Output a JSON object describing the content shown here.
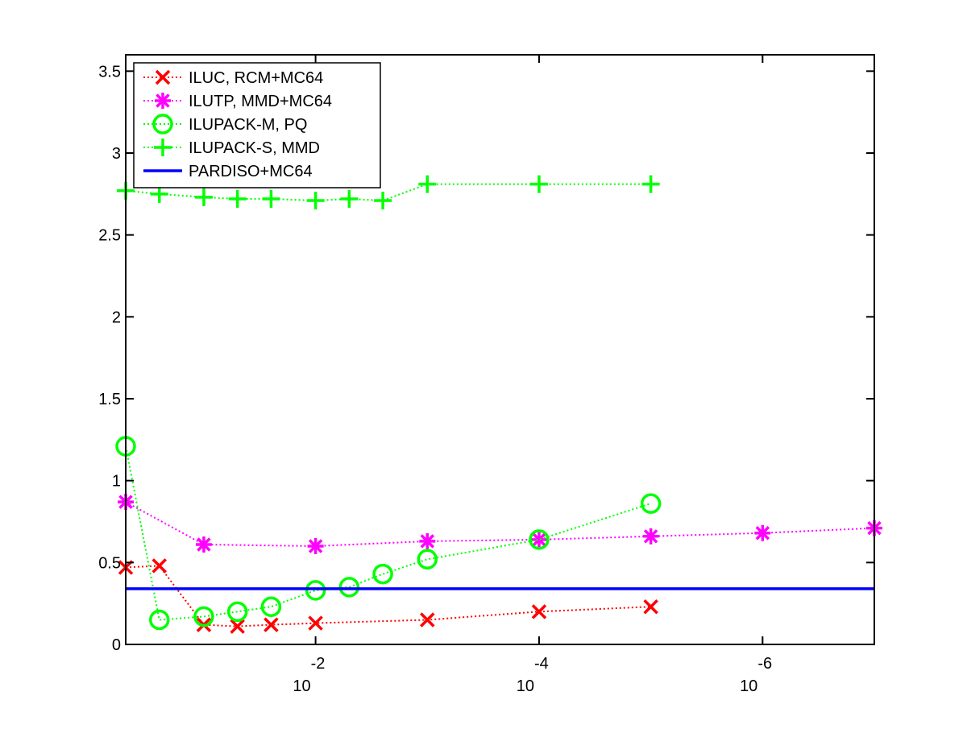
{
  "chart_data": {
    "type": "line",
    "title": "",
    "xlabel": "",
    "ylabel": "",
    "x_scale": "log-reversed",
    "xlim": [
      0.5,
      1e-07
    ],
    "ylim": [
      0,
      3.6
    ],
    "grid": false,
    "legend_position": "top-left",
    "yticks": [
      {
        "value": 0,
        "label": "0"
      },
      {
        "value": 0.5,
        "label": "0.5"
      },
      {
        "value": 1,
        "label": "1"
      },
      {
        "value": 1.5,
        "label": "1.5"
      },
      {
        "value": 2,
        "label": "2"
      },
      {
        "value": 2.5,
        "label": "2.5"
      },
      {
        "value": 3,
        "label": "3"
      },
      {
        "value": 3.5,
        "label": "3.5"
      }
    ],
    "xticks": [
      {
        "value": 0.01,
        "base": "10",
        "exponent": "-2"
      },
      {
        "value": 0.0001,
        "base": "10",
        "exponent": "-4"
      },
      {
        "value": 1e-06,
        "base": "10",
        "exponent": "-6"
      }
    ],
    "series": [
      {
        "name": "ILUC, RCM+MC64",
        "color": "#ff0000",
        "marker": "x",
        "line_style": "dotted",
        "x": [
          0.5,
          0.25,
          0.1,
          0.05,
          0.025,
          0.01,
          0.001,
          0.0001,
          1e-05
        ],
        "y": [
          0.47,
          0.48,
          0.12,
          0.11,
          0.12,
          0.13,
          0.15,
          0.2,
          0.23
        ]
      },
      {
        "name": "ILUTP, MMD+MC64",
        "color": "#ff00ff",
        "marker": "asterisk",
        "line_style": "dotted",
        "x": [
          0.5,
          0.1,
          0.01,
          0.001,
          0.0001,
          1e-05,
          1e-06,
          1e-07
        ],
        "y": [
          0.87,
          0.61,
          0.6,
          0.63,
          0.64,
          0.66,
          0.68,
          0.71
        ]
      },
      {
        "name": "ILUPACK-M, PQ",
        "color": "#00ff00",
        "marker": "circle",
        "line_style": "dotted",
        "x": [
          0.5,
          0.25,
          0.1,
          0.05,
          0.025,
          0.01,
          0.005,
          0.0025,
          0.001,
          0.0001,
          1e-05
        ],
        "y": [
          1.21,
          0.15,
          0.17,
          0.2,
          0.23,
          0.33,
          0.35,
          0.43,
          0.52,
          0.64,
          0.86
        ]
      },
      {
        "name": "ILUPACK-S, MMD",
        "color": "#00ff00",
        "marker": "plus",
        "line_style": "dotted",
        "x": [
          0.5,
          0.25,
          0.1,
          0.05,
          0.025,
          0.01,
          0.005,
          0.0025,
          0.001,
          0.0001,
          1e-05
        ],
        "y": [
          2.77,
          2.75,
          2.73,
          2.72,
          2.72,
          2.71,
          2.72,
          2.71,
          2.81,
          2.81,
          2.81
        ]
      },
      {
        "name": "PARDISO+MC64",
        "color": "#0000ff",
        "marker": "none",
        "line_style": "solid",
        "x": [
          0.5,
          1e-07
        ],
        "y": [
          0.34,
          0.34
        ]
      }
    ]
  }
}
